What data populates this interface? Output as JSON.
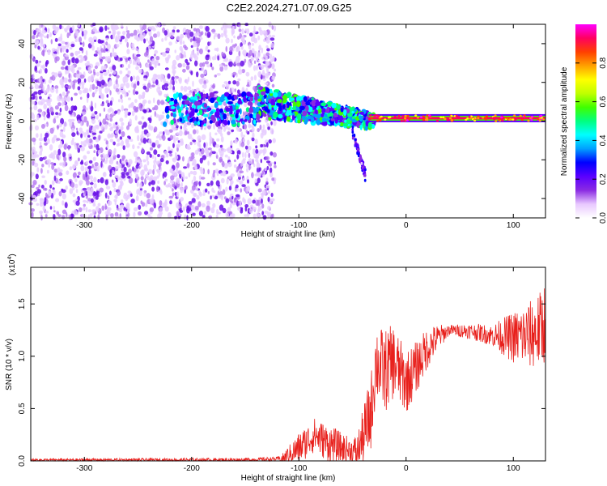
{
  "title": "C2E2.2024.271.07.09.G25",
  "chart_data": [
    {
      "type": "heatmap",
      "xlabel": "Height of straight line (km)",
      "ylabel": "Frequency (Hz)",
      "xlim": [
        -350,
        130
      ],
      "ylim": [
        -50,
        50
      ],
      "x_ticks": [
        -300,
        -200,
        -100,
        0,
        100
      ],
      "y_ticks": [
        -40,
        -20,
        0,
        20,
        40
      ],
      "colorbar": {
        "label": "Normalized spectral amplitude",
        "range": [
          0,
          1
        ],
        "ticks": [
          "0.0",
          "0.2",
          "0.4",
          "0.6",
          "0.8"
        ],
        "colors": [
          "#ffffff",
          "#e8c8ff",
          "#8a2be2",
          "#5a00ff",
          "#0000ff",
          "#00a0ff",
          "#00ffff",
          "#00ff80",
          "#40ff00",
          "#c0ff00",
          "#ffff00",
          "#ffa000",
          "#ff4000",
          "#ff0060",
          "#ff00ff"
        ]
      },
      "features": [
        {
          "name": "broadband noise",
          "x_range": [
            -350,
            -130
          ],
          "y_range": [
            -50,
            50
          ],
          "amplitude": 0.12
        },
        {
          "name": "early track",
          "x_range": [
            -225,
            -140
          ],
          "center_hz": 6,
          "amplitude": 0.35
        },
        {
          "name": "descending track",
          "x_range": [
            -140,
            -30
          ],
          "center_hz_start": 10,
          "center_hz_end": 0,
          "amplitude": 0.4
        },
        {
          "name": "tail",
          "x_range": [
            -50,
            -38
          ],
          "center_hz_start": -5,
          "center_hz_end": -28,
          "amplitude": 0.2
        },
        {
          "name": "carrier line",
          "x_range": [
            -35,
            130
          ],
          "center_hz": 1.5,
          "amplitude": 0.92
        }
      ]
    },
    {
      "type": "line",
      "xlabel": "Height of straight line (km)",
      "ylabel": "SNR (10 * v/v)",
      "y_scale_label": "(x10",
      "y_scale_exp": "4",
      "y_scale_close": ")",
      "xlim": [
        -350,
        130
      ],
      "ylim": [
        0,
        1.85
      ],
      "x_ticks": [
        -300,
        -200,
        -100,
        0,
        100
      ],
      "y_ticks": [
        "0.0",
        "0.5",
        "1.0",
        "1.5"
      ],
      "series": [
        {
          "color": "#e8201c",
          "points": [
            [
              -350,
              0.01
            ],
            [
              -250,
              0.01
            ],
            [
              -150,
              0.01
            ],
            [
              -115,
              0.02
            ],
            [
              -100,
              0.12
            ],
            [
              -85,
              0.25
            ],
            [
              -75,
              0.18
            ],
            [
              -60,
              0.12
            ],
            [
              -45,
              0.08
            ],
            [
              -33,
              0.45
            ],
            [
              -28,
              0.95
            ],
            [
              -20,
              0.85
            ],
            [
              -12,
              0.95
            ],
            [
              0,
              0.75
            ],
            [
              10,
              0.9
            ],
            [
              20,
              1.08
            ],
            [
              30,
              1.18
            ],
            [
              40,
              1.25
            ],
            [
              60,
              1.24
            ],
            [
              80,
              1.2
            ],
            [
              100,
              1.18
            ],
            [
              115,
              1.2
            ],
            [
              125,
              1.25
            ],
            [
              130,
              1.35
            ]
          ],
          "noise": [
            [
              -350,
              0.01
            ],
            [
              -120,
              0.02
            ],
            [
              -100,
              0.15
            ],
            [
              -70,
              0.18
            ],
            [
              -50,
              0.12
            ],
            [
              -35,
              0.35
            ],
            [
              -20,
              0.4
            ],
            [
              0,
              0.3
            ],
            [
              20,
              0.2
            ],
            [
              40,
              0.05
            ],
            [
              80,
              0.1
            ],
            [
              100,
              0.25
            ],
            [
              130,
              0.4
            ]
          ]
        }
      ]
    }
  ]
}
